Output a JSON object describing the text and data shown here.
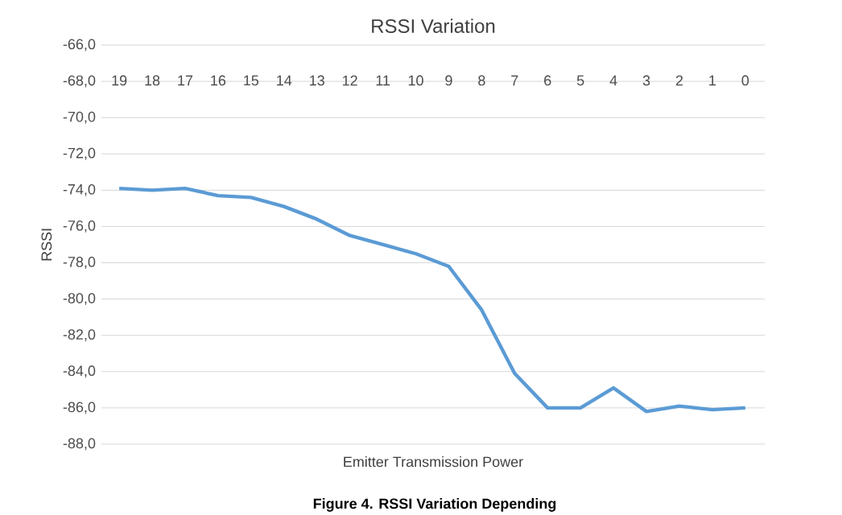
{
  "chart_data": {
    "type": "line",
    "title": "RSSI Variation",
    "xlabel": "Emitter Transmission Power",
    "ylabel": "RSSI",
    "annotations": [
      "Figure 4. RSSI Variation Depending"
    ],
    "categories": [
      "19",
      "18",
      "17",
      "16",
      "15",
      "14",
      "13",
      "12",
      "11",
      "10",
      "9",
      "8",
      "7",
      "6",
      "5",
      "4",
      "3",
      "2",
      "1",
      "0"
    ],
    "series": [
      {
        "color": "#5b9bd5",
        "values": [
          -73.9,
          -74.0,
          -73.9,
          -74.3,
          -74.4,
          -74.9,
          -75.6,
          -76.5,
          -77.0,
          -77.5,
          -78.2,
          -80.6,
          -84.1,
          -86.0,
          -86.0,
          -84.9,
          -86.2,
          -85.9,
          -86.1,
          -86.0
        ]
      }
    ],
    "ylim": [
      -88,
      -66
    ],
    "yticks": [
      {
        "value": -88,
        "label": "-88,0"
      },
      {
        "value": -86,
        "label": "-86,0"
      },
      {
        "value": -84,
        "label": "-84,0"
      },
      {
        "value": -82,
        "label": "-82,0"
      },
      {
        "value": -80,
        "label": "-80,0"
      },
      {
        "value": -78,
        "label": "-78,0"
      },
      {
        "value": -76,
        "label": "-76,0"
      },
      {
        "value": -74,
        "label": "-74,0"
      },
      {
        "value": -72,
        "label": "-72,0"
      },
      {
        "value": -70,
        "label": "-70,0"
      },
      {
        "value": -68,
        "label": "-68,0"
      },
      {
        "value": -66,
        "label": "-66,0"
      }
    ],
    "grid": "y",
    "marker": "none",
    "line_style": "solid"
  }
}
